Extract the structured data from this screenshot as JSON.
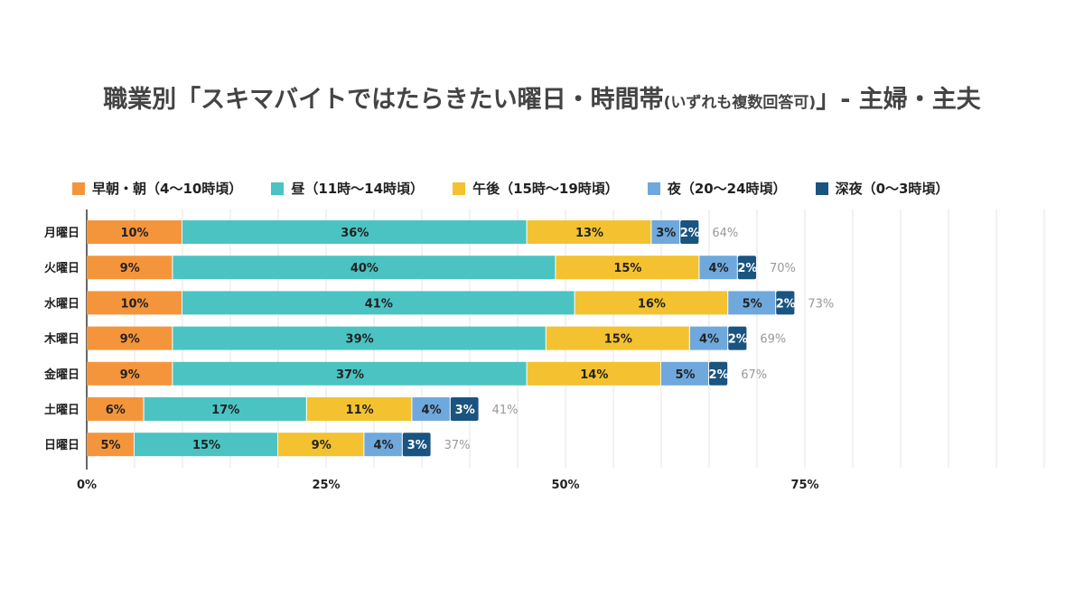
{
  "chart_data": {
    "type": "bar",
    "orientation": "horizontal",
    "stacked": true,
    "title": "職業別「スキマバイトではたらきたい曜日・時間帯",
    "title_note": "(いずれも複数回答可)",
    "title_suffix": "」- 主婦・主夫",
    "categories": [
      "月曜日",
      "火曜日",
      "水曜日",
      "木曜日",
      "金曜日",
      "土曜日",
      "日曜日"
    ],
    "series": [
      {
        "name": "早朝・朝（4〜10時頃）",
        "color": "#F5953B",
        "values": [
          10,
          9,
          10,
          9,
          9,
          6,
          5
        ]
      },
      {
        "name": "昼（11時〜14時頃）",
        "color": "#4BC3C3",
        "values": [
          36,
          40,
          41,
          39,
          37,
          17,
          15
        ]
      },
      {
        "name": "午後（15時〜19時頃）",
        "color": "#F4C230",
        "values": [
          13,
          15,
          16,
          15,
          14,
          11,
          9
        ]
      },
      {
        "name": "夜（20〜24時頃）",
        "color": "#6FA8DC",
        "values": [
          3,
          4,
          5,
          4,
          5,
          4,
          4
        ]
      },
      {
        "name": "深夜（0〜3時頃）",
        "color": "#1A5480",
        "values": [
          2,
          2,
          2,
          2,
          2,
          3,
          3
        ]
      }
    ],
    "totals": [
      "64%",
      "70%",
      "73%",
      "69%",
      "67%",
      "41%",
      "37%"
    ],
    "xlim": [
      0,
      100
    ],
    "xticks": [
      "0%",
      "25%",
      "50%",
      "75%"
    ],
    "xtick_values": [
      0,
      25,
      50,
      75
    ],
    "grid": true,
    "legend_position": "top"
  }
}
